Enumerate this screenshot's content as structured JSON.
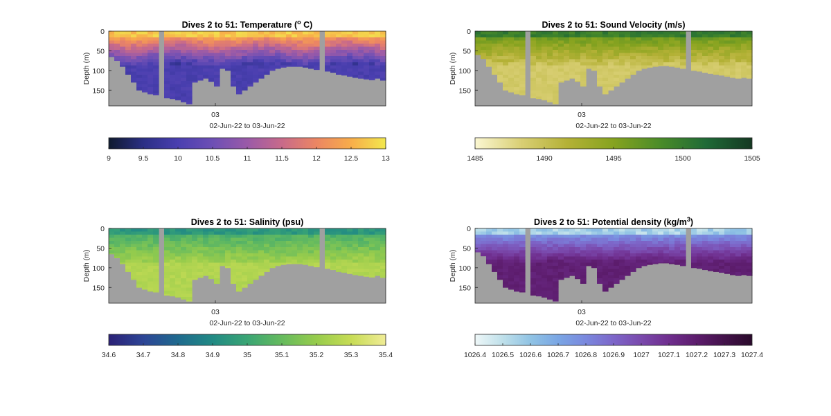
{
  "figure": {
    "background": "#ffffff",
    "bathymetry_color": "#a0a0a0"
  },
  "chart_data": [
    {
      "type": "heatmap",
      "panel": "temperature",
      "title": "Dives 2 to 51: Temperature (",
      "title_sup": "o",
      "title_suffix": " C)",
      "ylabel": "Depth (m)",
      "y_ticks": [
        "0",
        "50",
        "100",
        "150"
      ],
      "ylim": [
        0,
        190
      ],
      "y_reversed": true,
      "x_ticks": [
        "03"
      ],
      "xlabel": "02-Jun-22 to 03-Jun-22",
      "colorbar": {
        "ticks": [
          "9",
          "9.5",
          "10",
          "10.5",
          "11",
          "11.5",
          "12",
          "12.5",
          "13"
        ],
        "range": [
          9,
          13
        ],
        "colors": [
          "#0f1a2e",
          "#2b2f85",
          "#4a3fb0",
          "#6d4fb5",
          "#9a5aa8",
          "#c86a8a",
          "#ec8663",
          "#f8ad4a",
          "#f2e84e"
        ]
      },
      "profiles": {
        "dives": 50,
        "bottom_depth_m": [
          65,
          75,
          90,
          110,
          130,
          150,
          155,
          160,
          162,
          165,
          170,
          172,
          175,
          180,
          185,
          130,
          125,
          120,
          128,
          140,
          95,
          100,
          140,
          160,
          150,
          140,
          130,
          120,
          110,
          100,
          95,
          92,
          90,
          90,
          90,
          92,
          95,
          98,
          100,
          102,
          105,
          110,
          112,
          115,
          118,
          120,
          122,
          124,
          120,
          125
        ],
        "gaps": [
          9,
          38
        ]
      }
    },
    {
      "type": "heatmap",
      "panel": "sound_velocity",
      "title": "Dives 2 to 51: Sound Velocity (m/s)",
      "ylabel": "Depth (m)",
      "y_ticks": [
        "0",
        "50",
        "100",
        "150"
      ],
      "ylim": [
        0,
        190
      ],
      "y_reversed": true,
      "x_ticks": [
        "03"
      ],
      "xlabel": "02-Jun-22 to 03-Jun-22",
      "colorbar": {
        "ticks": [
          "1485",
          "1490",
          "1495",
          "1500",
          "1505"
        ],
        "range": [
          1485,
          1505
        ],
        "colors": [
          "#fbf7d2",
          "#d9cf74",
          "#b4b136",
          "#86a31f",
          "#4b8c28",
          "#1f6a36",
          "#153822"
        ]
      },
      "profiles": {
        "dives": 50,
        "bottom_depth_m": [
          60,
          70,
          90,
          110,
          130,
          150,
          155,
          160,
          162,
          165,
          170,
          172,
          175,
          180,
          185,
          130,
          125,
          120,
          128,
          140,
          95,
          100,
          140,
          160,
          150,
          140,
          130,
          120,
          110,
          100,
          95,
          92,
          90,
          88,
          88,
          90,
          92,
          95,
          98,
          100,
          102,
          105,
          108,
          110,
          112,
          115,
          118,
          120,
          118,
          120
        ],
        "gaps": [
          9,
          38
        ]
      }
    },
    {
      "type": "heatmap",
      "panel": "salinity",
      "title": "Dives 2 to 51: Salinity (psu)",
      "ylabel": "Depth (m)",
      "y_ticks": [
        "0",
        "50",
        "100",
        "150"
      ],
      "ylim": [
        0,
        190
      ],
      "y_reversed": true,
      "x_ticks": [
        "03"
      ],
      "xlabel": "02-Jun-22 to 03-Jun-22",
      "colorbar": {
        "ticks": [
          "34.6",
          "34.7",
          "34.8",
          "34.9",
          "35",
          "35.1",
          "35.2",
          "35.3",
          "35.4"
        ],
        "range": [
          34.6,
          35.4
        ],
        "colors": [
          "#2b2176",
          "#2d4596",
          "#1f6a8e",
          "#218a84",
          "#3aa574",
          "#66bb5e",
          "#97cc4c",
          "#c7dc55",
          "#f0ec96"
        ]
      },
      "profiles": {
        "dives": 50,
        "bottom_depth_m": [
          65,
          75,
          90,
          110,
          130,
          150,
          155,
          160,
          162,
          165,
          170,
          172,
          175,
          180,
          185,
          130,
          125,
          120,
          128,
          140,
          95,
          100,
          140,
          160,
          150,
          140,
          130,
          120,
          110,
          100,
          95,
          92,
          90,
          90,
          90,
          92,
          95,
          98,
          100,
          102,
          105,
          110,
          112,
          115,
          118,
          120,
          122,
          124,
          120,
          125
        ],
        "gaps": [
          9,
          38
        ]
      }
    },
    {
      "type": "heatmap",
      "panel": "potential_density",
      "title": "Dives 2 to 51: Potential density (kg/m",
      "title_sup": "3",
      "title_suffix": ")",
      "ylabel": "Depth (m)",
      "y_ticks": [
        "0",
        "50",
        "100",
        "150"
      ],
      "ylim": [
        0,
        190
      ],
      "y_reversed": true,
      "x_ticks": [
        "03"
      ],
      "xlabel": "02-Jun-22 to 03-Jun-22",
      "colorbar": {
        "ticks": [
          "1026.4",
          "1026.5",
          "1026.6",
          "1026.7",
          "1026.8",
          "1026.9",
          "1027",
          "1027.1",
          "1027.2",
          "1027.3",
          "1027.4"
        ],
        "range": [
          1026.4,
          1027.4
        ],
        "colors": [
          "#eef7f8",
          "#bfe0ea",
          "#90c3e4",
          "#7aa6e4",
          "#7a88de",
          "#7d66c9",
          "#7a49ac",
          "#6f2e8e",
          "#5c1c6c",
          "#43124a",
          "#2a0a2b"
        ]
      },
      "profiles": {
        "dives": 50,
        "bottom_depth_m": [
          60,
          70,
          90,
          110,
          130,
          150,
          155,
          160,
          162,
          165,
          170,
          172,
          175,
          180,
          185,
          130,
          125,
          120,
          128,
          140,
          95,
          100,
          140,
          160,
          150,
          140,
          130,
          120,
          110,
          100,
          95,
          92,
          90,
          88,
          88,
          90,
          92,
          95,
          98,
          100,
          102,
          105,
          108,
          110,
          112,
          115,
          118,
          120,
          118,
          120
        ],
        "gaps": [
          9,
          38
        ]
      }
    }
  ]
}
